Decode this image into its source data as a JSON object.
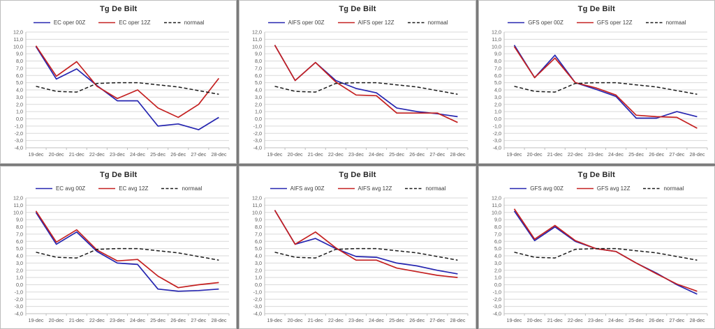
{
  "page": {
    "background": "#7a7a7a"
  },
  "colors": {
    "series_blue": "#2525b0",
    "series_red": "#c42020",
    "normal_line": "#1a1a1a",
    "grid": "#d9d9d9",
    "axis_line": "#bfbfbf",
    "tick_text": "#595959",
    "panel_bg": "#ffffff"
  },
  "y_axis": {
    "min": -4,
    "max": 12,
    "step": 1,
    "decimal_separator": "comma"
  },
  "x_labels": [
    "19-dec",
    "20-dec",
    "21-dec",
    "22-dec",
    "23-dec",
    "24-dec",
    "25-dec",
    "26-dec",
    "27-dec",
    "28-dec"
  ],
  "chart_data": [
    {
      "type": "line",
      "title": "Tg De Bilt",
      "categories": [
        "19-dec",
        "20-dec",
        "21-dec",
        "22-dec",
        "23-dec",
        "24-dec",
        "25-dec",
        "26-dec",
        "27-dec",
        "28-dec"
      ],
      "ylim": [
        -4,
        12
      ],
      "legend_position": "top",
      "grid": true,
      "series": [
        {
          "name": "EC oper 00Z",
          "color": "blue",
          "dash": false,
          "values": [
            10.0,
            5.5,
            6.9,
            4.6,
            2.5,
            2.5,
            -1.0,
            -0.7,
            -1.5,
            0.2
          ]
        },
        {
          "name": "EC oper 12Z",
          "color": "red",
          "dash": false,
          "values": [
            10.1,
            5.9,
            7.9,
            4.5,
            2.8,
            4.0,
            1.5,
            0.2,
            2.0,
            5.6
          ]
        },
        {
          "name": "normaal",
          "color": "black",
          "dash": true,
          "values": [
            4.5,
            3.8,
            3.7,
            4.9,
            5.0,
            5.0,
            4.7,
            4.4,
            3.9,
            3.4
          ]
        }
      ]
    },
    {
      "type": "line",
      "title": "Tg De Bilt",
      "categories": [
        "19-dec",
        "20-dec",
        "21-dec",
        "22-dec",
        "23-dec",
        "24-dec",
        "25-dec",
        "26-dec",
        "27-dec",
        "28-dec"
      ],
      "ylim": [
        -4,
        12
      ],
      "legend_position": "top",
      "grid": true,
      "series": [
        {
          "name": "AIFS oper 00Z",
          "color": "blue",
          "dash": false,
          "values": [
            10.2,
            5.3,
            7.8,
            5.3,
            4.2,
            3.6,
            1.5,
            1.0,
            0.7,
            0.3
          ]
        },
        {
          "name": "AIFS oper 12Z",
          "color": "red",
          "dash": false,
          "values": [
            10.2,
            5.3,
            7.8,
            5.1,
            3.3,
            3.2,
            0.8,
            0.8,
            0.8,
            -0.5
          ]
        },
        {
          "name": "normaal",
          "color": "black",
          "dash": true,
          "values": [
            4.5,
            3.8,
            3.7,
            4.9,
            5.0,
            5.0,
            4.7,
            4.4,
            3.9,
            3.4
          ]
        }
      ]
    },
    {
      "type": "line",
      "title": "Tg De Bilt",
      "categories": [
        "19-dec",
        "20-dec",
        "21-dec",
        "22-dec",
        "23-dec",
        "24-dec",
        "25-dec",
        "26-dec",
        "27-dec",
        "28-dec"
      ],
      "ylim": [
        -4,
        12
      ],
      "legend_position": "top",
      "grid": true,
      "series": [
        {
          "name": "GFS oper 00Z",
          "color": "blue",
          "dash": false,
          "values": [
            10.2,
            5.7,
            8.8,
            5.0,
            4.1,
            3.1,
            0.1,
            0.1,
            1.0,
            0.3
          ]
        },
        {
          "name": "GFS oper 12Z",
          "color": "red",
          "dash": false,
          "values": [
            10.0,
            5.7,
            8.4,
            5.0,
            4.3,
            3.3,
            0.5,
            0.3,
            0.2,
            -1.3
          ]
        },
        {
          "name": "normaal",
          "color": "black",
          "dash": true,
          "values": [
            4.5,
            3.8,
            3.7,
            4.9,
            5.0,
            5.0,
            4.7,
            4.4,
            3.9,
            3.4
          ]
        }
      ]
    },
    {
      "type": "line",
      "title": "Tg De Bilt",
      "categories": [
        "19-dec",
        "20-dec",
        "21-dec",
        "22-dec",
        "23-dec",
        "24-dec",
        "25-dec",
        "26-dec",
        "27-dec",
        "28-dec"
      ],
      "ylim": [
        -4,
        12
      ],
      "legend_position": "top",
      "grid": true,
      "series": [
        {
          "name": "EC avg 00Z",
          "color": "blue",
          "dash": false,
          "values": [
            10.0,
            5.6,
            7.3,
            4.6,
            3.0,
            2.8,
            -0.6,
            -0.9,
            -0.8,
            -0.6
          ]
        },
        {
          "name": "EC avg 12Z",
          "color": "red",
          "dash": false,
          "values": [
            10.2,
            5.9,
            7.6,
            4.8,
            3.3,
            3.5,
            1.2,
            -0.4,
            0.0,
            0.3
          ]
        },
        {
          "name": "normaal",
          "color": "black",
          "dash": true,
          "values": [
            4.5,
            3.8,
            3.7,
            4.9,
            5.0,
            5.0,
            4.7,
            4.4,
            3.9,
            3.4
          ]
        }
      ]
    },
    {
      "type": "line",
      "title": "Tg De Bilt",
      "categories": [
        "19-dec",
        "20-dec",
        "21-dec",
        "22-dec",
        "23-dec",
        "24-dec",
        "25-dec",
        "26-dec",
        "27-dec",
        "28-dec"
      ],
      "ylim": [
        -4,
        12
      ],
      "legend_position": "top",
      "grid": true,
      "series": [
        {
          "name": "AIFS avg 00Z",
          "color": "blue",
          "dash": false,
          "values": [
            10.3,
            5.6,
            6.4,
            5.0,
            3.9,
            3.8,
            3.0,
            2.6,
            2.0,
            1.5
          ]
        },
        {
          "name": "AIFS avg 12Z",
          "color": "red",
          "dash": false,
          "values": [
            10.3,
            5.6,
            7.3,
            5.1,
            3.4,
            3.4,
            2.3,
            1.8,
            1.3,
            1.0
          ]
        },
        {
          "name": "normaal",
          "color": "black",
          "dash": true,
          "values": [
            4.5,
            3.8,
            3.7,
            4.9,
            5.0,
            5.0,
            4.7,
            4.4,
            3.9,
            3.4
          ]
        }
      ]
    },
    {
      "type": "line",
      "title": "Tg De Bilt",
      "categories": [
        "19-dec",
        "20-dec",
        "21-dec",
        "22-dec",
        "23-dec",
        "24-dec",
        "25-dec",
        "26-dec",
        "27-dec",
        "28-dec"
      ],
      "ylim": [
        -4,
        12
      ],
      "legend_position": "top",
      "grid": true,
      "series": [
        {
          "name": "GFS avg 00Z",
          "color": "blue",
          "dash": false,
          "values": [
            10.2,
            6.1,
            8.0,
            6.0,
            5.0,
            4.6,
            3.0,
            1.6,
            0.0,
            -1.3
          ]
        },
        {
          "name": "GFS avg 12Z",
          "color": "red",
          "dash": false,
          "values": [
            10.5,
            6.3,
            8.2,
            6.1,
            5.0,
            4.6,
            3.0,
            1.5,
            0.1,
            -0.9
          ]
        },
        {
          "name": "normaal",
          "color": "black",
          "dash": true,
          "values": [
            4.5,
            3.8,
            3.7,
            4.9,
            5.0,
            5.0,
            4.7,
            4.4,
            3.9,
            3.4
          ]
        }
      ]
    }
  ]
}
